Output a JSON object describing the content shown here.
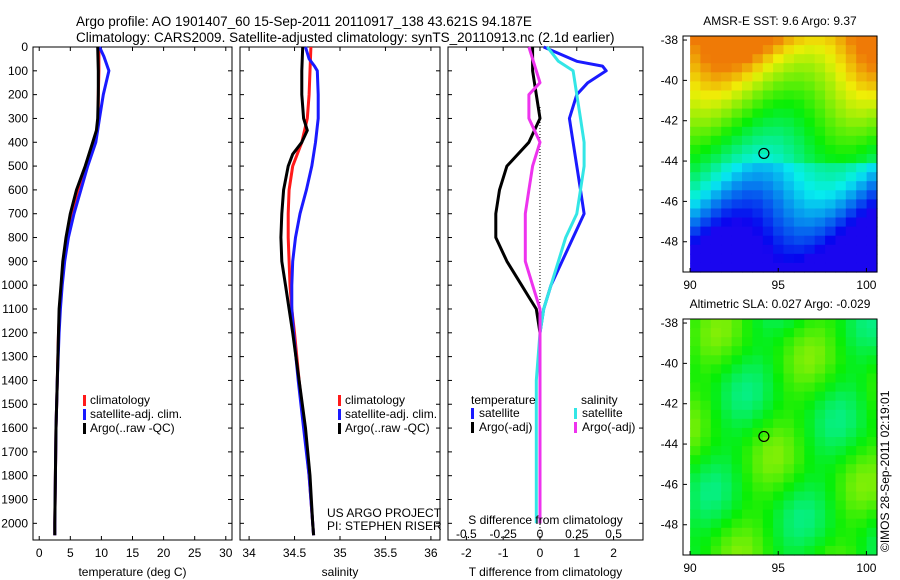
{
  "header": {
    "line1": "Argo profile: AO 1901407_60 15-Sep-2011 20110917_138 43.621S 94.187E",
    "line2": "Climatology: CARS2009. Satellite-adjusted climatology: synTS_20110913.nc (2.1d earlier)"
  },
  "credit": "©IMOS 28-Sep-2011 02:19:01",
  "colors": {
    "climatology": "#ff1a1a",
    "satellite": "#1a1aff",
    "argo": "#000000",
    "salinity_satellite": "#33e6e6",
    "salinity_argo": "#ee33ee"
  },
  "chart_data": [
    {
      "type": "line",
      "id": "temperature",
      "xlabel": "temperature (deg C)",
      "xlim": [
        -1,
        31
      ],
      "xticks": [
        0,
        5,
        10,
        15,
        20,
        25,
        30
      ],
      "ylim": [
        2070,
        0
      ],
      "yticks": [
        0,
        100,
        200,
        300,
        400,
        500,
        600,
        700,
        800,
        900,
        1000,
        1100,
        1200,
        1300,
        1400,
        1500,
        1600,
        1700,
        1800,
        1900,
        2000
      ],
      "legend": [
        "climatology",
        "satellite-adj. clim.",
        "Argo(..raw -QC)"
      ],
      "series": [
        {
          "name": "climatology",
          "color": "climatology",
          "depth": [
            0,
            100,
            200,
            300,
            400,
            500,
            600,
            700,
            800,
            900,
            1000,
            1100,
            1200,
            1400,
            1600,
            1800,
            2000,
            2050
          ],
          "values": [
            9.6,
            9.6,
            9.5,
            9.5,
            9.0,
            7.6,
            6.2,
            5.2,
            4.6,
            4.0,
            3.6,
            3.3,
            3.1,
            2.9,
            2.7,
            2.6,
            2.5,
            2.5
          ]
        },
        {
          "name": "satellite-adj. clim.",
          "color": "satellite",
          "depth": [
            0,
            40,
            100,
            200,
            300,
            400,
            500,
            600,
            700,
            800,
            900,
            1000,
            1100,
            1200,
            1400,
            1600,
            1800,
            2000,
            2050
          ],
          "values": [
            9.7,
            10.4,
            11.2,
            10.3,
            9.7,
            9.1,
            7.8,
            6.7,
            5.6,
            4.7,
            4.1,
            3.7,
            3.4,
            3.2,
            2.9,
            2.7,
            2.6,
            2.5,
            2.5
          ]
        },
        {
          "name": "Argo(..raw -QC)",
          "color": "argo",
          "depth": [
            0,
            100,
            200,
            300,
            350,
            400,
            500,
            600,
            700,
            800,
            900,
            1000,
            1100,
            1200,
            1400,
            1600,
            1800,
            2000,
            2050
          ],
          "values": [
            9.4,
            9.5,
            9.5,
            9.4,
            9.2,
            8.6,
            7.4,
            6.0,
            5.0,
            4.3,
            3.8,
            3.5,
            3.2,
            3.1,
            2.9,
            2.7,
            2.6,
            2.5,
            2.5
          ]
        }
      ]
    },
    {
      "type": "line",
      "id": "salinity",
      "xlabel": "salinity",
      "xlim": [
        33.9,
        36.1
      ],
      "xticks": [
        34,
        34.5,
        35,
        35.5,
        36
      ],
      "ylim": [
        2070,
        0
      ],
      "legend": [
        "climatology",
        "satellite-adj. clim.",
        "Argo(..raw -QC)"
      ],
      "annotation": [
        "US ARGO PROJECT",
        "PI: STEPHEN RISER"
      ],
      "series": [
        {
          "name": "climatology",
          "color": "climatology",
          "depth": [
            0,
            100,
            200,
            300,
            400,
            500,
            600,
            700,
            800,
            900,
            1000,
            1100,
            1200,
            1400,
            1600,
            1800,
            2000,
            2050
          ],
          "values": [
            34.68,
            34.67,
            34.66,
            34.64,
            34.58,
            34.48,
            34.44,
            34.43,
            34.43,
            34.44,
            34.45,
            34.47,
            34.5,
            34.55,
            34.61,
            34.66,
            34.7,
            34.71
          ]
        },
        {
          "name": "satellite-adj. clim.",
          "color": "satellite",
          "depth": [
            0,
            50,
            80,
            100,
            200,
            300,
            400,
            500,
            600,
            700,
            800,
            900,
            1000,
            1100,
            1200,
            1400,
            1600,
            1800,
            2000,
            2050
          ],
          "values": [
            34.62,
            34.66,
            34.72,
            34.75,
            34.76,
            34.76,
            34.73,
            34.69,
            34.63,
            34.56,
            34.51,
            34.48,
            34.47,
            34.47,
            34.49,
            34.54,
            34.6,
            34.66,
            34.7,
            34.71
          ]
        },
        {
          "name": "Argo(..raw -QC)",
          "color": "argo",
          "depth": [
            0,
            100,
            200,
            300,
            350,
            400,
            450,
            500,
            600,
            700,
            800,
            900,
            1000,
            1100,
            1200,
            1400,
            1600,
            1800,
            2000,
            2050
          ],
          "values": [
            34.59,
            34.58,
            34.58,
            34.6,
            34.64,
            34.58,
            34.48,
            34.43,
            34.38,
            34.36,
            34.35,
            34.36,
            34.4,
            34.44,
            34.48,
            34.55,
            34.62,
            34.67,
            34.7,
            34.71
          ]
        }
      ]
    },
    {
      "type": "line",
      "id": "difference",
      "xlabel": "T difference from climatology",
      "title": "S difference from climatology",
      "xlim": [
        -2.5,
        2.8
      ],
      "xticks": [
        -2,
        -1,
        0,
        1,
        2
      ],
      "top_ticks": [
        "-0.5",
        "-0.25",
        "0",
        "0.25",
        "0.5"
      ],
      "top_tick_positions": [
        -2,
        -1,
        0,
        1,
        2
      ],
      "ylim": [
        2070,
        0
      ],
      "legend_titles": [
        "temperature",
        "salinity"
      ],
      "legend": [
        "satellite",
        "Argo(-adj)",
        "satellite",
        "Argo(-adj)"
      ],
      "series": [
        {
          "name": "satellite",
          "group": "temperature",
          "color": "satellite",
          "depth": [
            0,
            60,
            80,
            100,
            150,
            200,
            300,
            400,
            500,
            600,
            700,
            800,
            900,
            1000,
            1100,
            1200,
            1400,
            1600,
            1800,
            2000
          ],
          "values": [
            0.1,
            1.0,
            1.7,
            1.8,
            1.3,
            1.0,
            0.8,
            0.9,
            1.0,
            1.1,
            1.2,
            0.9,
            0.6,
            0.3,
            0.1,
            0.0,
            0.0,
            0.0,
            0.0,
            0.0
          ]
        },
        {
          "name": "Argo(-adj)",
          "group": "temperature",
          "color": "argo",
          "depth": [
            0,
            100,
            200,
            300,
            400,
            500,
            600,
            700,
            800,
            900,
            1000,
            1050,
            1100,
            1200,
            1400,
            1600,
            1800,
            2000
          ],
          "values": [
            -0.2,
            -0.2,
            -0.1,
            0.0,
            -0.3,
            -0.9,
            -1.1,
            -1.2,
            -1.2,
            -0.9,
            -0.5,
            -0.3,
            -0.1,
            0.0,
            0.0,
            0.0,
            0.0,
            0.0
          ]
        },
        {
          "name": "satellite",
          "group": "salinity",
          "color": "salinity_satellite",
          "depth": [
            0,
            60,
            100,
            200,
            300,
            400,
            500,
            600,
            700,
            800,
            900,
            1000,
            1100,
            1200,
            1400,
            1600,
            1800,
            2000
          ],
          "values": [
            0.2,
            0.5,
            0.9,
            1.0,
            1.1,
            1.2,
            1.2,
            1.1,
            1.0,
            0.7,
            0.5,
            0.3,
            0.1,
            0.0,
            -0.1,
            -0.1,
            -0.1,
            -0.1
          ]
        },
        {
          "name": "Argo(-adj)",
          "group": "salinity",
          "color": "salinity_argo",
          "depth": [
            0,
            50,
            100,
            150,
            200,
            300,
            400,
            500,
            600,
            700,
            800,
            900,
            1000,
            1100,
            1200,
            1400,
            1600,
            1800,
            2000
          ],
          "values": [
            -0.3,
            -0.2,
            -0.1,
            0.0,
            -0.3,
            -0.3,
            0.0,
            -0.2,
            -0.3,
            -0.4,
            -0.4,
            -0.4,
            -0.2,
            0.0,
            0.0,
            0.0,
            0.0,
            0.0,
            0.0
          ]
        }
      ]
    },
    {
      "type": "heatmap",
      "id": "sst_map",
      "title": "AMSR-E SST: 9.6 Argo: 9.37",
      "xlim": [
        89.6,
        100.6
      ],
      "ylim": [
        -49.5,
        -37.8
      ],
      "xticks": [
        90,
        95,
        100
      ],
      "yticks": [
        -38,
        -40,
        -42,
        -44,
        -46,
        -48
      ],
      "data_extent_x": [
        90,
        100.6
      ],
      "argo_marker": {
        "lon": 94.187,
        "lat": -43.621
      }
    },
    {
      "type": "heatmap",
      "id": "sla_map",
      "title": "Altimetric SLA: 0.027 Argo: -0.029",
      "xlim": [
        89.6,
        100.6
      ],
      "ylim": [
        -49.5,
        -37.8
      ],
      "xticks": [
        90,
        95,
        100
      ],
      "yticks": [
        -38,
        -40,
        -42,
        -44,
        -46,
        -48
      ],
      "data_extent_x": [
        90,
        100.6
      ],
      "argo_marker": {
        "lon": 94.187,
        "lat": -43.621
      }
    }
  ]
}
